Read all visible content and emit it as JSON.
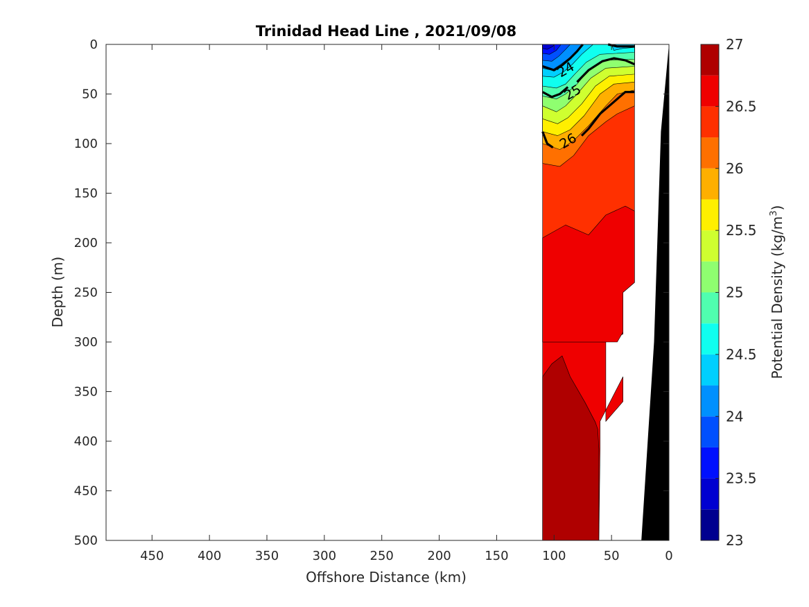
{
  "chart_data": {
    "type": "heatmap",
    "subtype": "filled-contour",
    "title": "Trinidad Head Line , 2021/09/08",
    "xlabel": "Offshore Distance (km)",
    "ylabel": "Depth (m)",
    "colorbar_label": "Potential Density (kg/m",
    "colorbar_label_superscript": "3",
    "colorbar_label_suffix": ")",
    "x_reversed": true,
    "y_reversed": true,
    "xlim": [
      0,
      490
    ],
    "ylim": [
      0,
      500
    ],
    "x_ticks": [
      450,
      400,
      350,
      300,
      250,
      200,
      150,
      100,
      50,
      0
    ],
    "y_ticks": [
      0,
      50,
      100,
      150,
      200,
      250,
      300,
      350,
      400,
      450,
      500
    ],
    "clim": [
      23,
      27
    ],
    "colorbar_ticks": [
      27,
      26.5,
      26,
      25.5,
      25,
      24.5,
      24,
      23.5,
      23
    ],
    "colorbar_levels": [
      {
        "from": 23.0,
        "to": 23.25,
        "color": "#00008f"
      },
      {
        "from": 23.25,
        "to": 23.5,
        "color": "#0000d0"
      },
      {
        "from": 23.5,
        "to": 23.75,
        "color": "#0010ff"
      },
      {
        "from": 23.75,
        "to": 24.0,
        "color": "#0050ff"
      },
      {
        "from": 24.0,
        "to": 24.25,
        "color": "#0090ff"
      },
      {
        "from": 24.25,
        "to": 24.5,
        "color": "#00cfff"
      },
      {
        "from": 24.5,
        "to": 24.75,
        "color": "#10ffef"
      },
      {
        "from": 24.75,
        "to": 25.0,
        "color": "#50ffaf"
      },
      {
        "from": 25.0,
        "to": 25.25,
        "color": "#8fff70"
      },
      {
        "from": 25.25,
        "to": 25.5,
        "color": "#cfff30"
      },
      {
        "from": 25.5,
        "to": 25.75,
        "color": "#ffef00"
      },
      {
        "from": 25.75,
        "to": 26.0,
        "color": "#ffaf00"
      },
      {
        "from": 26.0,
        "to": 26.25,
        "color": "#ff7000"
      },
      {
        "from": 26.25,
        "to": 26.5,
        "color": "#ff3000"
      },
      {
        "from": 26.5,
        "to": 26.75,
        "color": "#ef0000"
      },
      {
        "from": 26.75,
        "to": 27.0,
        "color": "#af0000"
      }
    ],
    "contour_labels": [
      {
        "text": "24",
        "x": 90,
        "y": 25
      },
      {
        "text": "25",
        "x": 84,
        "y": 48
      },
      {
        "text": "26",
        "x": 88,
        "y": 97
      }
    ],
    "bathymetry_color": "#000000",
    "regions": [
      {
        "name": "upper-slope",
        "value": 26.4,
        "points": [
          [
            110,
            0
          ],
          [
            30,
            0
          ],
          [
            30,
            240
          ],
          [
            40,
            250
          ],
          [
            40,
            292
          ],
          [
            55,
            300
          ],
          [
            110,
            300
          ]
        ]
      },
      {
        "name": "deep-layer",
        "value": 26.6,
        "points": [
          [
            110,
            195
          ],
          [
            110,
            300
          ],
          [
            103,
            292
          ],
          [
            110,
            283
          ],
          [
            110,
            300
          ],
          [
            55,
            300
          ],
          [
            55,
            380
          ],
          [
            40,
            360
          ],
          [
            40,
            335
          ],
          [
            60,
            380
          ],
          [
            60,
            408
          ],
          [
            61,
            500
          ],
          [
            110,
            500
          ]
        ]
      },
      {
        "name": "bottom-water",
        "value": 26.9,
        "points": [
          [
            110,
            335
          ],
          [
            102,
            322
          ],
          [
            93,
            314
          ],
          [
            86,
            335
          ],
          [
            73,
            361
          ],
          [
            64,
            381
          ],
          [
            62,
            388
          ],
          [
            61,
            408
          ],
          [
            61,
            500
          ],
          [
            110,
            500
          ]
        ]
      },
      {
        "name": "mid-layer",
        "value": 26.6,
        "points": [
          [
            110,
            195
          ],
          [
            90,
            182
          ],
          [
            70,
            192
          ],
          [
            55,
            172
          ],
          [
            38,
            163
          ],
          [
            30,
            168
          ],
          [
            30,
            240
          ],
          [
            40,
            250
          ],
          [
            40,
            290
          ],
          [
            45,
            300
          ],
          [
            110,
            300
          ]
        ]
      },
      {
        "name": "iso-26",
        "value": 26.1,
        "points": [
          [
            110,
            120
          ],
          [
            95,
            123
          ],
          [
            83,
            112
          ],
          [
            70,
            92
          ],
          [
            55,
            78
          ],
          [
            45,
            70
          ],
          [
            30,
            62
          ],
          [
            30,
            0
          ],
          [
            110,
            0
          ]
        ]
      },
      {
        "name": "iso-25.75",
        "value": 25.9,
        "points": [
          [
            110,
            100
          ],
          [
            95,
            106
          ],
          [
            83,
            97
          ],
          [
            70,
            82
          ],
          [
            55,
            62
          ],
          [
            45,
            50
          ],
          [
            30,
            46
          ],
          [
            30,
            0
          ],
          [
            110,
            0
          ]
        ]
      },
      {
        "name": "iso-25.5",
        "value": 25.6,
        "points": [
          [
            110,
            88
          ],
          [
            97,
            92
          ],
          [
            86,
            86
          ],
          [
            74,
            72
          ],
          [
            60,
            50
          ],
          [
            48,
            40
          ],
          [
            30,
            38
          ],
          [
            30,
            0
          ],
          [
            110,
            0
          ]
        ]
      },
      {
        "name": "iso-25.25",
        "value": 25.4,
        "points": [
          [
            110,
            75
          ],
          [
            97,
            80
          ],
          [
            88,
            74
          ],
          [
            76,
            60
          ],
          [
            64,
            42
          ],
          [
            52,
            32
          ],
          [
            30,
            30
          ],
          [
            30,
            0
          ],
          [
            110,
            0
          ]
        ]
      },
      {
        "name": "iso-25",
        "value": 25.1,
        "points": [
          [
            110,
            62
          ],
          [
            98,
            68
          ],
          [
            90,
            62
          ],
          [
            80,
            50
          ],
          [
            68,
            34
          ],
          [
            55,
            24
          ],
          [
            30,
            22
          ],
          [
            30,
            0
          ],
          [
            110,
            0
          ]
        ]
      },
      {
        "name": "iso-24.75",
        "value": 24.9,
        "points": [
          [
            110,
            52
          ],
          [
            98,
            55
          ],
          [
            90,
            50
          ],
          [
            80,
            40
          ],
          [
            70,
            26
          ],
          [
            58,
            16
          ],
          [
            30,
            15
          ],
          [
            30,
            0
          ],
          [
            110,
            0
          ]
        ]
      },
      {
        "name": "iso-24.5",
        "value": 24.6,
        "points": [
          [
            110,
            42
          ],
          [
            98,
            44
          ],
          [
            90,
            40
          ],
          [
            82,
            30
          ],
          [
            72,
            18
          ],
          [
            60,
            10
          ],
          [
            30,
            8
          ],
          [
            30,
            0
          ],
          [
            110,
            0
          ]
        ]
      },
      {
        "name": "iso-24.25",
        "value": 24.4,
        "points": [
          [
            110,
            32
          ],
          [
            100,
            33
          ],
          [
            92,
            28
          ],
          [
            84,
            20
          ],
          [
            76,
            10
          ],
          [
            68,
            2
          ],
          [
            66,
            0
          ],
          [
            110,
            0
          ]
        ]
      },
      {
        "name": "iso-24",
        "value": 24.1,
        "points": [
          [
            110,
            24
          ],
          [
            102,
            26
          ],
          [
            94,
            20
          ],
          [
            86,
            13
          ],
          [
            80,
            6
          ],
          [
            76,
            0
          ],
          [
            110,
            0
          ]
        ]
      },
      {
        "name": "iso-23.75",
        "value": 23.9,
        "points": [
          [
            110,
            16
          ],
          [
            102,
            17
          ],
          [
            96,
            12
          ],
          [
            90,
            5
          ],
          [
            86,
            0
          ],
          [
            110,
            0
          ]
        ]
      },
      {
        "name": "iso-23.5",
        "value": 23.6,
        "points": [
          [
            110,
            9
          ],
          [
            104,
            10
          ],
          [
            98,
            6
          ],
          [
            94,
            0
          ],
          [
            110,
            0
          ]
        ]
      },
      {
        "name": "iso-23.25",
        "value": 23.4,
        "points": [
          [
            110,
            4
          ],
          [
            106,
            5
          ],
          [
            101,
            2
          ],
          [
            100,
            0
          ],
          [
            110,
            0
          ]
        ]
      },
      {
        "name": "right-edge-top",
        "value": 24.4,
        "points": [
          [
            48,
            6
          ],
          [
            40,
            4
          ],
          [
            30,
            3
          ],
          [
            30,
            0
          ],
          [
            50,
            0
          ]
        ]
      }
    ],
    "bold_contours": [
      {
        "level": 24,
        "points": [
          [
            110,
            22
          ],
          [
            100,
            26
          ],
          [
            93,
            21
          ],
          [
            86,
            14
          ],
          [
            80,
            7
          ],
          [
            75,
            0
          ]
        ]
      },
      {
        "level": 24,
        "points": [
          [
            53,
            0
          ],
          [
            45,
            2
          ],
          [
            38,
            2
          ],
          [
            30,
            2
          ]
        ]
      },
      {
        "level": 25,
        "points": [
          [
            110,
            48
          ],
          [
            102,
            53
          ],
          [
            95,
            50
          ],
          [
            88,
            43
          ]
        ]
      },
      {
        "level": 25,
        "points": [
          [
            80,
            38
          ],
          [
            70,
            26
          ],
          [
            58,
            17
          ],
          [
            48,
            14
          ],
          [
            38,
            16
          ],
          [
            30,
            20
          ]
        ]
      },
      {
        "level": 26,
        "points": [
          [
            110,
            88
          ],
          [
            106,
            100
          ],
          [
            101,
            104
          ]
        ]
      },
      {
        "level": 26,
        "points": [
          [
            76,
            92
          ],
          [
            70,
            85
          ],
          [
            60,
            70
          ],
          [
            48,
            58
          ],
          [
            38,
            48
          ],
          [
            30,
            48
          ]
        ]
      }
    ],
    "bathymetry": [
      [
        24,
        500
      ],
      [
        13,
        300
      ],
      [
        7,
        88
      ],
      [
        0,
        0
      ],
      [
        0,
        500
      ]
    ]
  }
}
